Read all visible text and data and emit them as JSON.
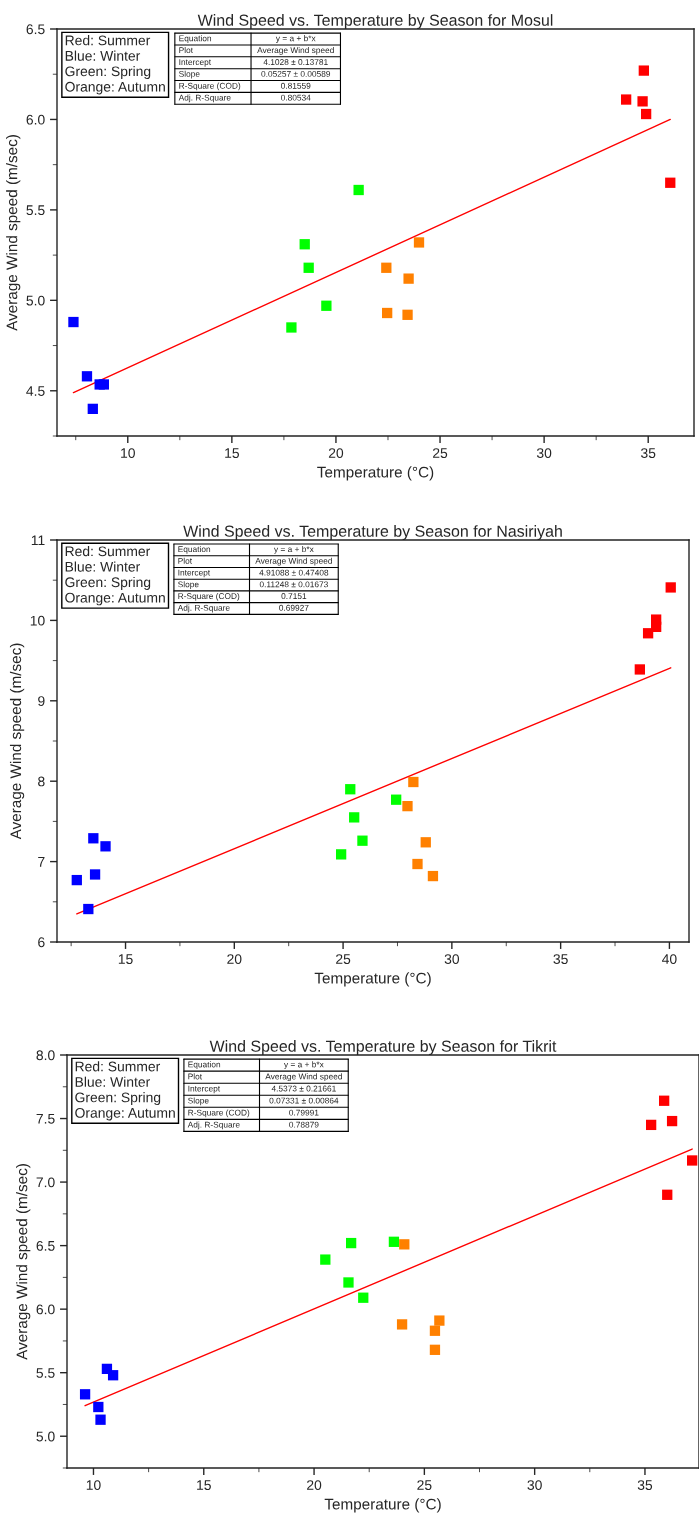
{
  "chart_data": [
    {
      "type": "scatter",
      "title": "Wind Speed vs. Temperature by Season for Mosul",
      "xlabel": "Temperature (°C)",
      "ylabel": "Average Wind speed (m/sec)",
      "xlim": [
        6.6,
        37.2
      ],
      "xticks": [
        10,
        15,
        20,
        25,
        30,
        35
      ],
      "ylim": [
        4.25,
        6.5
      ],
      "yticks": [
        4.5,
        {
          "value": 5,
          "label": "5.0"
        },
        5.5,
        {
          "value": 6,
          "label": "6.0"
        },
        6.5
      ],
      "grid": false,
      "legend": false,
      "marker": "square",
      "series": [
        {
          "color": "#0000ff",
          "x": [
            7.39,
            8.04,
            8.32,
            8.65,
            8.85
          ],
          "values": [
            4.88,
            4.58,
            4.4,
            4.535,
            4.535
          ]
        },
        {
          "color": "#00ff00",
          "x": [
            17.86,
            18.5,
            18.69,
            19.54,
            21.09
          ],
          "values": [
            4.85,
            5.31,
            5.18,
            4.97,
            5.61
          ]
        },
        {
          "color": "#ff8000",
          "x": [
            22.42,
            22.46,
            23.49,
            23.44,
            23.99
          ],
          "values": [
            5.18,
            4.93,
            5.12,
            4.92,
            5.32
          ]
        },
        {
          "color": "#ff0000",
          "x": [
            33.94,
            34.79,
            34.73,
            34.9,
            36.06
          ],
          "values": [
            6.11,
            6.27,
            6.1,
            6.03,
            5.65
          ]
        },
        {
          "type": "line",
          "color": "#ff0000",
          "marker": "none",
          "x": [
            7.39,
            36.06
          ],
          "values": [
            4.49,
            6.0
          ]
        }
      ],
      "annotations": [
        "Red: Summer\nBlue: Winter\nGreen: Spring\nOrange: Autumn",
        "Equation",
        "y = a + b*x",
        "Plot",
        "Average Wind speed",
        "Intercept",
        "4.1028 ± 0.13781",
        "Slope",
        "0.05257 ± 0.00589",
        "R-Square (COD)",
        "0.81559",
        "Adj. R-Square",
        "0.80534"
      ]
    },
    {
      "type": "scatter",
      "title": "Wind Speed vs. Temperature by Season for Nasiriyah",
      "xlabel": "Temperature (°C)",
      "ylabel": "Average Wind speed (m/sec)",
      "xlim": [
        11.85,
        40.9
      ],
      "xticks": [
        15,
        20,
        25,
        30,
        35,
        40
      ],
      "ylim": [
        6,
        11
      ],
      "yticks": [
        6,
        7,
        8,
        9,
        10,
        11
      ],
      "grid": false,
      "legend": false,
      "marker": "square",
      "series": [
        {
          "color": "#0000ff",
          "x": [
            12.76,
            13.29,
            13.52,
            13.6,
            14.08
          ],
          "values": [
            6.77,
            6.41,
            7.29,
            6.84,
            7.19
          ]
        },
        {
          "color": "#00ff00",
          "x": [
            24.91,
            25.33,
            25.51,
            25.89,
            27.44
          ],
          "values": [
            7.09,
            7.9,
            7.55,
            7.26,
            7.77
          ]
        },
        {
          "color": "#ff8000",
          "x": [
            27.96,
            28.23,
            28.42,
            28.8,
            29.13
          ],
          "values": [
            7.69,
            7.99,
            6.97,
            7.24,
            6.82
          ]
        },
        {
          "color": "#ff0000",
          "x": [
            38.64,
            39.02,
            39.39,
            39.39,
            40.06
          ],
          "values": [
            9.39,
            9.84,
            10.01,
            9.92,
            10.41
          ]
        },
        {
          "type": "line",
          "color": "#ff0000",
          "marker": "none",
          "x": [
            12.76,
            40.06
          ],
          "values": [
            6.35,
            9.41
          ]
        }
      ],
      "annotations": [
        "Red: Summer\nBlue: Winter\nGreen: Spring\nOrange: Autumn",
        "Equation",
        "y = a + b*x",
        "Plot",
        "Average Wind speed",
        "Intercept",
        "4.91088 ± 0.47408",
        "Slope",
        "0.11248 ± 0.01673",
        "R-Square (COD)",
        "0.7151",
        "Adj. R-Square",
        "0.69927"
      ]
    },
    {
      "type": "scatter",
      "title": "Wind Speed vs. Temperature by Season for Tikrit",
      "xlabel": "Temperature (°C)",
      "ylabel": "Average Wind speed (m/sec)",
      "xlim": [
        8.8,
        37.45
      ],
      "xticks": [
        10,
        15,
        20,
        25,
        30,
        35
      ],
      "ylim": [
        4.75,
        8.0
      ],
      "yticks": [
        {
          "value": 5,
          "label": "5.0"
        },
        5.5,
        {
          "value": 6,
          "label": "6.0"
        },
        6.5,
        {
          "value": 7,
          "label": "7.0"
        },
        7.5,
        {
          "value": 8,
          "label": "8.0"
        }
      ],
      "grid": false,
      "legend": false,
      "marker": "square",
      "series": [
        {
          "color": "#0000ff",
          "x": [
            9.62,
            10.22,
            10.32,
            10.61,
            10.89
          ],
          "values": [
            5.33,
            5.23,
            5.13,
            5.53,
            5.48
          ]
        },
        {
          "color": "#00ff00",
          "x": [
            20.51,
            21.56,
            21.68,
            22.23,
            23.62
          ],
          "values": [
            6.39,
            6.21,
            6.52,
            6.09,
            6.53
          ]
        },
        {
          "color": "#ff8000",
          "x": [
            23.99,
            24.09,
            25.48,
            25.48,
            25.68
          ],
          "values": [
            5.88,
            6.51,
            5.83,
            5.68,
            5.91
          ]
        },
        {
          "color": "#ff0000",
          "x": [
            35.28,
            35.87,
            36.01,
            36.23,
            37.14
          ],
          "values": [
            7.45,
            7.64,
            6.9,
            7.48,
            7.17
          ]
        },
        {
          "type": "line",
          "color": "#ff0000",
          "marker": "none",
          "x": [
            9.62,
            37.14
          ],
          "values": [
            5.24,
            7.26
          ]
        }
      ],
      "annotations": [
        "Red: Summer\nBlue: Winter\nGreen: Spring\nOrange: Autumn",
        "Equation",
        "y = a + b*x",
        "Plot",
        "Average Wind speed",
        "Intercept",
        "4.5373 ± 0.21661",
        "Slope",
        "0.07331 ± 0.00864",
        "R-Square (COD)",
        "0.79991",
        "Adj. R-Square",
        "0.78879"
      ]
    }
  ]
}
